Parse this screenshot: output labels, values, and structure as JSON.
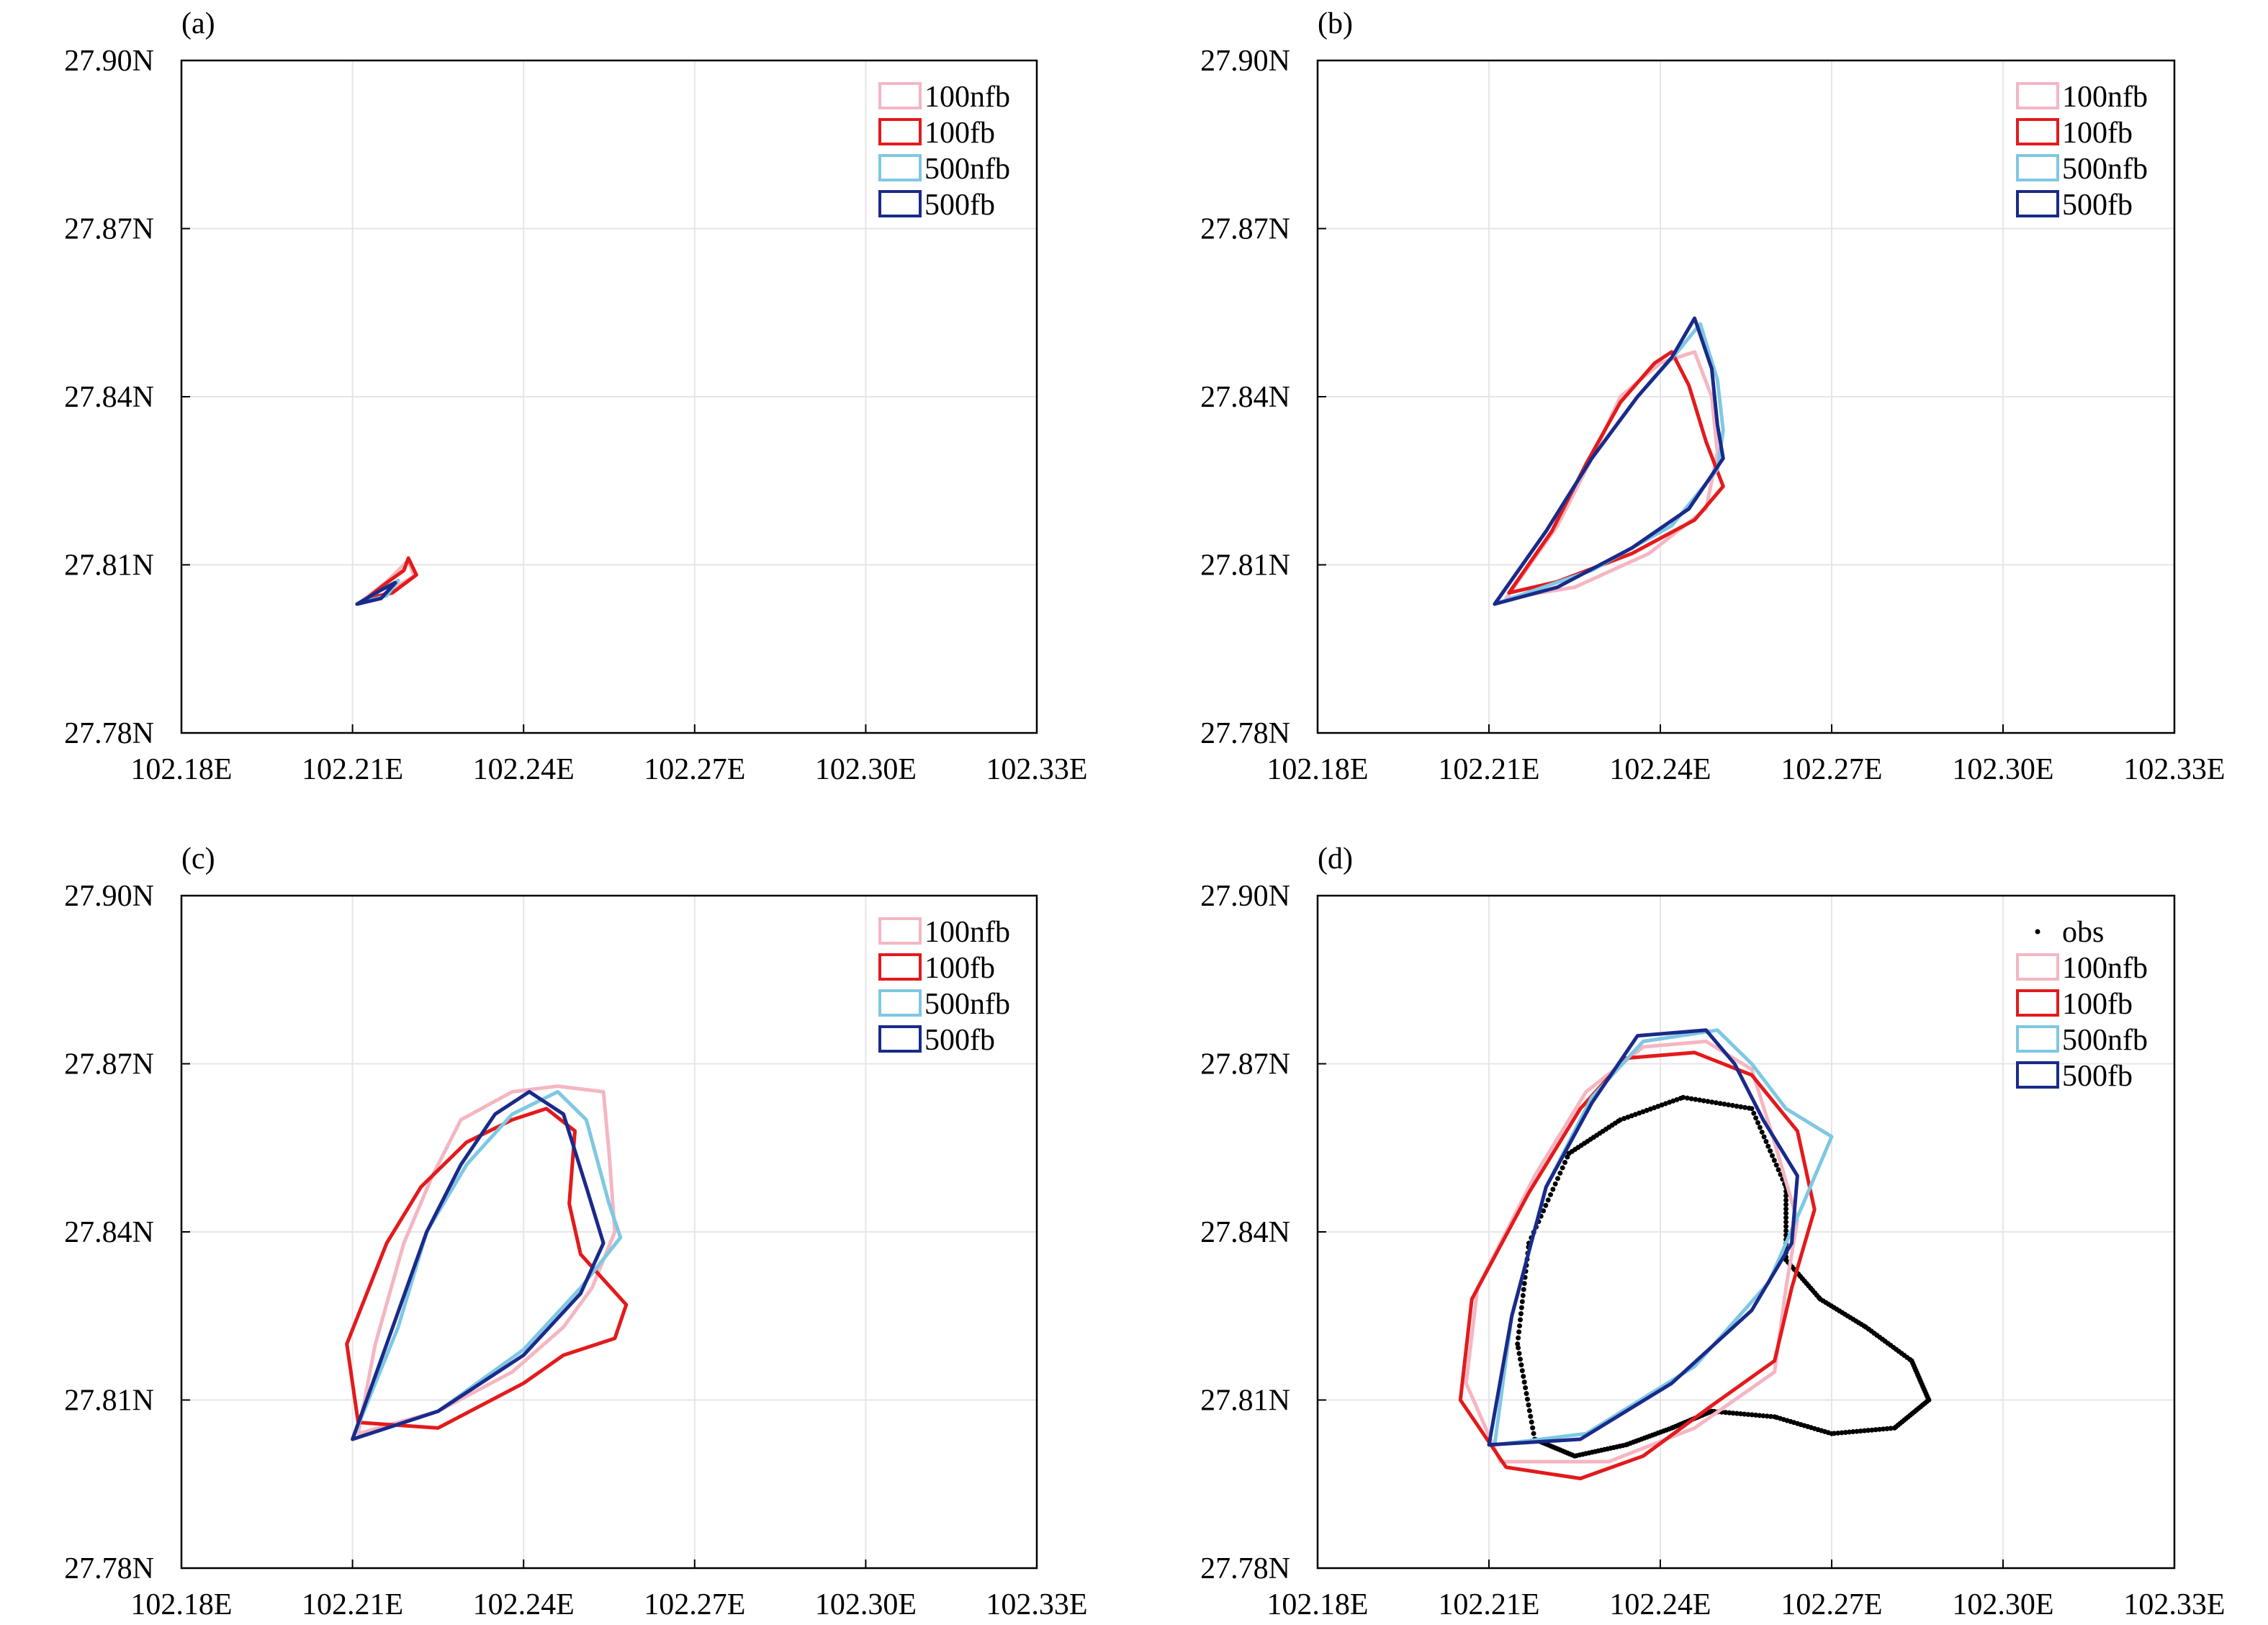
{
  "chart_data": [
    {
      "type": "contour",
      "panel": "(a)",
      "xlim": [
        102.18,
        102.33
      ],
      "ylim": [
        27.78,
        27.9
      ],
      "x_ticks": [
        "102.18E",
        "102.21E",
        "102.24E",
        "102.27E",
        "102.30E",
        "102.33E"
      ],
      "y_ticks": [
        "27.78N",
        "27.81N",
        "27.84N",
        "27.87N",
        "27.90N"
      ],
      "grid": true,
      "legend_position": "top-right",
      "legend": [
        "100nfb",
        "100fb",
        "500nfb",
        "500fb"
      ],
      "series": [
        {
          "name": "100nfb",
          "color": "#f4b6c2",
          "points": [
            [
              102.2112,
              27.8032
            ],
            [
              102.216,
              27.807
            ],
            [
              102.2198,
              27.8108
            ],
            [
              102.2208,
              27.808
            ],
            [
              102.215,
              27.8045
            ],
            [
              102.2112,
              27.8032
            ]
          ]
        },
        {
          "name": "100fb",
          "color": "#e31a1c",
          "points": [
            [
              102.2125,
              27.804
            ],
            [
              102.216,
              27.8068
            ],
            [
              102.219,
              27.809
            ],
            [
              102.2198,
              27.8112
            ],
            [
              102.2212,
              27.8082
            ],
            [
              102.217,
              27.805
            ],
            [
              102.2125,
              27.804
            ]
          ]
        },
        {
          "name": "500nfb",
          "color": "#7ec8e3",
          "points": [
            [
              102.211,
              27.803
            ],
            [
              102.215,
              27.8055
            ],
            [
              102.218,
              27.8072
            ],
            [
              102.216,
              27.8045
            ],
            [
              102.211,
              27.803
            ]
          ]
        },
        {
          "name": "500fb",
          "color": "#1a2a8a",
          "points": [
            [
              102.2108,
              27.803
            ],
            [
              102.215,
              27.8055
            ],
            [
              102.2175,
              27.8068
            ],
            [
              102.215,
              27.804
            ],
            [
              102.2108,
              27.803
            ]
          ]
        }
      ]
    },
    {
      "type": "contour",
      "panel": "(b)",
      "xlim": [
        102.18,
        102.33
      ],
      "ylim": [
        27.78,
        27.9
      ],
      "x_ticks": [
        "102.18E",
        "102.21E",
        "102.24E",
        "102.27E",
        "102.30E",
        "102.33E"
      ],
      "y_ticks": [
        "27.78N",
        "27.81N",
        "27.84N",
        "27.87N",
        "27.90N"
      ],
      "grid": true,
      "legend_position": "top-right",
      "legend": [
        "100nfb",
        "100fb",
        "500nfb",
        "500fb"
      ],
      "series": [
        {
          "name": "100nfb",
          "color": "#f4b6c2",
          "points": [
            [
              102.213,
              27.804
            ],
            [
              102.222,
              27.817
            ],
            [
              102.228,
              27.829
            ],
            [
              102.233,
              27.84
            ],
            [
              102.24,
              27.846
            ],
            [
              102.246,
              27.848
            ],
            [
              102.249,
              27.84
            ],
            [
              102.25,
              27.83
            ],
            [
              102.248,
              27.82
            ],
            [
              102.238,
              27.812
            ],
            [
              102.225,
              27.806
            ],
            [
              102.213,
              27.804
            ]
          ]
        },
        {
          "name": "100fb",
          "color": "#e31a1c",
          "points": [
            [
              102.2135,
              27.805
            ],
            [
              102.221,
              27.816
            ],
            [
              102.227,
              27.828
            ],
            [
              102.233,
              27.839
            ],
            [
              102.239,
              27.846
            ],
            [
              102.242,
              27.848
            ],
            [
              102.245,
              27.842
            ],
            [
              102.248,
              27.832
            ],
            [
              102.251,
              27.824
            ],
            [
              102.246,
              27.818
            ],
            [
              102.235,
              27.812
            ],
            [
              102.222,
              27.807
            ],
            [
              102.2135,
              27.805
            ]
          ]
        },
        {
          "name": "500nfb",
          "color": "#7ec8e3",
          "points": [
            [
              102.211,
              27.803
            ],
            [
              102.22,
              27.816
            ],
            [
              102.228,
              27.829
            ],
            [
              102.236,
              27.84
            ],
            [
              102.243,
              27.848
            ],
            [
              102.247,
              27.853
            ],
            [
              102.25,
              27.843
            ],
            [
              102.251,
              27.834
            ],
            [
              102.25,
              27.827
            ],
            [
              102.242,
              27.817
            ],
            [
              102.228,
              27.809
            ],
            [
              102.211,
              27.803
            ]
          ]
        },
        {
          "name": "500fb",
          "color": "#1a2a8a",
          "points": [
            [
              102.211,
              27.803
            ],
            [
              102.22,
              27.816
            ],
            [
              102.228,
              27.829
            ],
            [
              102.236,
              27.84
            ],
            [
              102.242,
              27.847
            ],
            [
              102.246,
              27.854
            ],
            [
              102.249,
              27.845
            ],
            [
              102.25,
              27.835
            ],
            [
              102.251,
              27.829
            ],
            [
              102.245,
              27.82
            ],
            [
              102.235,
              27.813
            ],
            [
              102.222,
              27.806
            ],
            [
              102.211,
              27.803
            ]
          ]
        }
      ]
    },
    {
      "type": "contour",
      "panel": "(c)",
      "xlim": [
        102.18,
        102.33
      ],
      "ylim": [
        27.78,
        27.9
      ],
      "x_ticks": [
        "102.18E",
        "102.21E",
        "102.24E",
        "102.27E",
        "102.30E",
        "102.33E"
      ],
      "y_ticks": [
        "27.78N",
        "27.81N",
        "27.84N",
        "27.87N",
        "27.90N"
      ],
      "grid": true,
      "legend_position": "top-right",
      "legend": [
        "100nfb",
        "100fb",
        "500nfb",
        "500fb"
      ],
      "series": [
        {
          "name": "100nfb",
          "color": "#f4b6c2",
          "points": [
            [
              102.211,
              27.804
            ],
            [
              102.214,
              27.82
            ],
            [
              102.219,
              27.838
            ],
            [
              102.224,
              27.85
            ],
            [
              102.229,
              27.86
            ],
            [
              102.238,
              27.865
            ],
            [
              102.246,
              27.866
            ],
            [
              102.254,
              27.865
            ],
            [
              102.255,
              27.854
            ],
            [
              102.256,
              27.84
            ],
            [
              102.252,
              27.83
            ],
            [
              102.247,
              27.823
            ],
            [
              102.238,
              27.815
            ],
            [
              102.225,
              27.808
            ],
            [
              102.211,
              27.804
            ]
          ]
        },
        {
          "name": "100fb",
          "color": "#e31a1c",
          "points": [
            [
              102.211,
              27.806
            ],
            [
              102.209,
              27.82
            ],
            [
              102.216,
              27.838
            ],
            [
              102.222,
              27.848
            ],
            [
              102.23,
              27.856
            ],
            [
              102.238,
              27.86
            ],
            [
              102.244,
              27.862
            ],
            [
              102.249,
              27.858
            ],
            [
              102.248,
              27.845
            ],
            [
              102.25,
              27.836
            ],
            [
              102.258,
              27.827
            ],
            [
              102.256,
              27.821
            ],
            [
              102.247,
              27.818
            ],
            [
              102.24,
              27.813
            ],
            [
              102.225,
              27.805
            ],
            [
              102.211,
              27.806
            ]
          ]
        },
        {
          "name": "500nfb",
          "color": "#7ec8e3",
          "points": [
            [
              102.21,
              27.803
            ],
            [
              102.218,
              27.823
            ],
            [
              102.223,
              27.84
            ],
            [
              102.23,
              27.852
            ],
            [
              102.238,
              27.861
            ],
            [
              102.246,
              27.865
            ],
            [
              102.251,
              27.86
            ],
            [
              102.255,
              27.845
            ],
            [
              102.257,
              27.839
            ],
            [
              102.25,
              27.83
            ],
            [
              102.24,
              27.819
            ],
            [
              102.225,
              27.808
            ],
            [
              102.21,
              27.803
            ]
          ]
        },
        {
          "name": "500fb",
          "color": "#1a2a8a",
          "points": [
            [
              102.21,
              27.803
            ],
            [
              102.216,
              27.82
            ],
            [
              102.223,
              27.84
            ],
            [
              102.229,
              27.852
            ],
            [
              102.235,
              27.861
            ],
            [
              102.241,
              27.865
            ],
            [
              102.247,
              27.861
            ],
            [
              102.251,
              27.848
            ],
            [
              102.254,
              27.838
            ],
            [
              102.25,
              27.829
            ],
            [
              102.24,
              27.818
            ],
            [
              102.225,
              27.808
            ],
            [
              102.21,
              27.803
            ]
          ]
        }
      ]
    },
    {
      "type": "contour",
      "panel": "(d)",
      "xlim": [
        102.18,
        102.33
      ],
      "ylim": [
        27.78,
        27.9
      ],
      "x_ticks": [
        "102.18E",
        "102.21E",
        "102.24E",
        "102.27E",
        "102.30E",
        "102.33E"
      ],
      "y_ticks": [
        "27.78N",
        "27.81N",
        "27.84N",
        "27.87N",
        "27.90N"
      ],
      "grid": true,
      "legend_position": "top-right",
      "legend": [
        "obs",
        "100nfb",
        "100fb",
        "500nfb",
        "500fb"
      ],
      "series": [
        {
          "name": "obs",
          "color": "#000000",
          "style": "dots",
          "points": [
            [
              102.218,
              27.803
            ],
            [
              102.215,
              27.82
            ],
            [
              102.217,
              27.838
            ],
            [
              102.224,
              27.854
            ],
            [
              102.233,
              27.86
            ],
            [
              102.244,
              27.864
            ],
            [
              102.256,
              27.862
            ],
            [
              102.262,
              27.848
            ],
            [
              102.262,
              27.835
            ],
            [
              102.268,
              27.828
            ],
            [
              102.276,
              27.823
            ],
            [
              102.284,
              27.817
            ],
            [
              102.287,
              27.81
            ],
            [
              102.281,
              27.805
            ],
            [
              102.27,
              27.804
            ],
            [
              102.26,
              27.807
            ],
            [
              102.249,
              27.808
            ],
            [
              102.242,
              27.805
            ],
            [
              102.234,
              27.802
            ],
            [
              102.225,
              27.8
            ],
            [
              102.218,
              27.803
            ]
          ]
        },
        {
          "name": "100nfb",
          "color": "#f4b6c2",
          "points": [
            [
              102.212,
              27.799
            ],
            [
              102.206,
              27.813
            ],
            [
              102.208,
              27.83
            ],
            [
              102.218,
              27.85
            ],
            [
              102.227,
              27.865
            ],
            [
              102.237,
              27.873
            ],
            [
              102.248,
              27.874
            ],
            [
              102.256,
              27.869
            ],
            [
              102.26,
              27.856
            ],
            [
              102.264,
              27.842
            ],
            [
              102.262,
              27.83
            ],
            [
              102.26,
              27.815
            ],
            [
              102.246,
              27.805
            ],
            [
              102.231,
              27.799
            ],
            [
              102.212,
              27.799
            ]
          ]
        },
        {
          "name": "100fb",
          "color": "#e31a1c",
          "points": [
            [
              102.213,
              27.798
            ],
            [
              102.205,
              27.81
            ],
            [
              102.207,
              27.828
            ],
            [
              102.217,
              27.847
            ],
            [
              102.226,
              27.862
            ],
            [
              102.234,
              27.871
            ],
            [
              102.246,
              27.872
            ],
            [
              102.256,
              27.868
            ],
            [
              102.264,
              27.858
            ],
            [
              102.267,
              27.844
            ],
            [
              102.263,
              27.83
            ],
            [
              102.26,
              27.817
            ],
            [
              102.249,
              27.809
            ],
            [
              102.237,
              27.8
            ],
            [
              102.226,
              27.796
            ],
            [
              102.213,
              27.798
            ]
          ]
        },
        {
          "name": "500nfb",
          "color": "#7ec8e3",
          "points": [
            [
              102.211,
              27.802
            ],
            [
              102.214,
              27.825
            ],
            [
              102.22,
              27.848
            ],
            [
              102.228,
              27.864
            ],
            [
              102.237,
              27.874
            ],
            [
              102.25,
              27.876
            ],
            [
              102.256,
              27.87
            ],
            [
              102.262,
              27.862
            ],
            [
              102.27,
              27.857
            ],
            [
              102.265,
              27.845
            ],
            [
              102.259,
              27.831
            ],
            [
              102.246,
              27.816
            ],
            [
              102.227,
              27.804
            ],
            [
              102.211,
              27.802
            ]
          ]
        },
        {
          "name": "500fb",
          "color": "#1a2a8a",
          "points": [
            [
              102.21,
              27.802
            ],
            [
              102.214,
              27.825
            ],
            [
              102.22,
              27.848
            ],
            [
              102.228,
              27.863
            ],
            [
              102.236,
              27.875
            ],
            [
              102.248,
              27.876
            ],
            [
              102.253,
              27.87
            ],
            [
              102.258,
              27.86
            ],
            [
              102.264,
              27.85
            ],
            [
              102.263,
              27.838
            ],
            [
              102.256,
              27.826
            ],
            [
              102.242,
              27.813
            ],
            [
              102.226,
              27.803
            ],
            [
              102.21,
              27.802
            ]
          ]
        }
      ]
    }
  ]
}
